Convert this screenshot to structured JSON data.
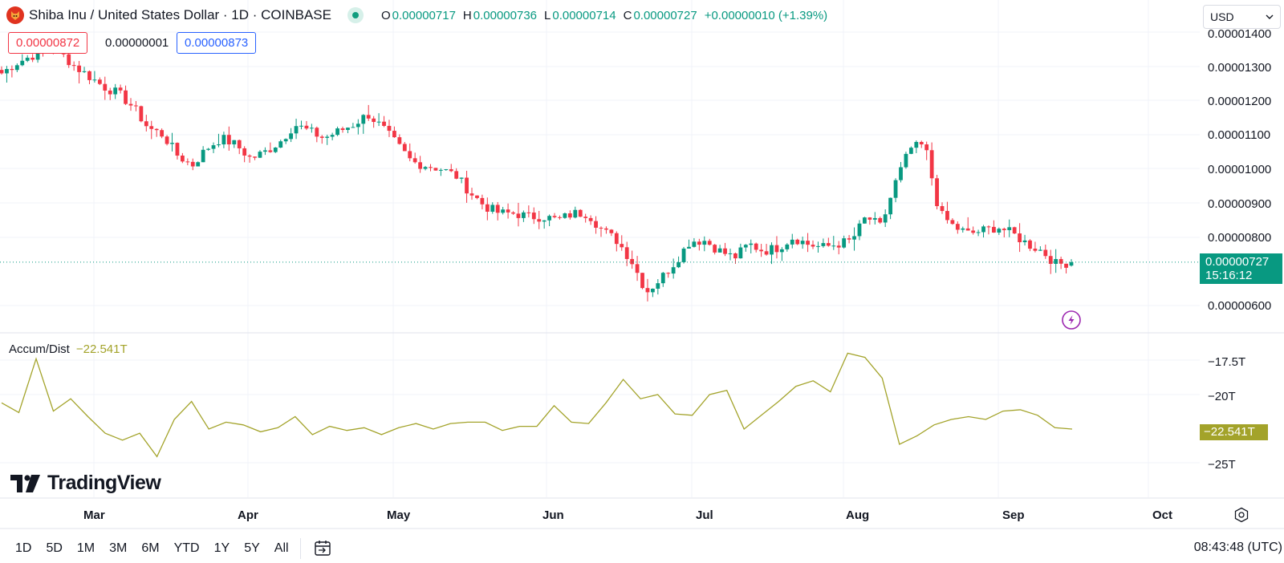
{
  "header": {
    "title": "Shiba Inu / United States Dollar · 1D · COINBASE",
    "ohlc": [
      {
        "key": "O",
        "value": "0.00000717"
      },
      {
        "key": "H",
        "value": "0.00000736"
      },
      {
        "key": "L",
        "value": "0.00000714"
      },
      {
        "key": "C",
        "value": "0.00000727"
      }
    ],
    "change": "+0.00000010 (+1.39%)"
  },
  "trade": {
    "sell": "0.00000872",
    "spread": "0.00000001",
    "buy": "0.00000873"
  },
  "currency": {
    "selected": "USD",
    "icon": "chevron-down-icon"
  },
  "price_axis": {
    "labels": [
      "0.00001400",
      "0.00001300",
      "0.00001200",
      "0.00001100",
      "0.00001000",
      "0.00000900",
      "0.00000800",
      "0.00000600"
    ],
    "last_price": "0.00000727",
    "countdown": "15:16:12"
  },
  "indicator": {
    "name": "Accum/Dist",
    "value": "−22.541T",
    "axis_labels": [
      "−17.5T",
      "−20T",
      "−25T"
    ],
    "tag": "−22.541T"
  },
  "time_axis": [
    "Mar",
    "Apr",
    "May",
    "Jun",
    "Jul",
    "Aug",
    "Sep",
    "Oct"
  ],
  "brand": "TradingView",
  "bottom": {
    "ranges": [
      "1D",
      "5D",
      "1M",
      "3M",
      "6M",
      "YTD",
      "1Y",
      "5Y",
      "All"
    ],
    "clock": "08:43:48 (UTC)"
  },
  "colors": {
    "up": "#089981",
    "down": "#f23645",
    "ad_line": "#a3a32a",
    "accent": "#2962ff"
  },
  "chart_data": [
    {
      "type": "candlestick",
      "title": "Shiba Inu / United States Dollar · 1D · COINBASE",
      "x": "daily, ~Feb 16 – Sep 13",
      "ylim": [
        5.8e-06,
        1.41e-05
      ],
      "xticks": [
        "Mar",
        "Apr",
        "May",
        "Jun",
        "Jul",
        "Aug",
        "Sep",
        "Oct"
      ],
      "close_path_estimated": [
        [
          1.28e-05,
          1.31e-05,
          1.33e-05,
          1.35e-05,
          1.34e-05,
          1.3e-05,
          1.27e-05,
          1.24e-05,
          1.22e-05,
          1.18e-05,
          1.12e-05
        ],
        [
          1.1e-05,
          1.04e-05,
          1.01e-05,
          1.06e-05,
          1.09e-05,
          1.07e-05,
          1.03e-05,
          1.05e-05,
          1.08e-05,
          1.13e-05,
          1.11e-05
        ],
        [
          1.09e-05,
          1.11e-05,
          1.13e-05,
          1.16e-05,
          1.12e-05,
          1.07e-05,
          1.02e-05,
          1.01e-05,
          1e-05,
          9.8e-06,
          9.3e-06
        ],
        [
          8.9e-06,
          8.7e-06,
          8.7e-06,
          8.6e-06,
          8.6e-06,
          8.5e-06,
          8.7e-06,
          8.7e-06,
          8.2e-06,
          7.9e-06,
          7.3e-06
        ],
        [
          6.4e-06,
          6.8e-06,
          7.3e-06,
          7.9e-06,
          7.9e-06,
          7.6e-06,
          7.4e-06,
          7.8e-06,
          7.6e-06,
          7.7e-06,
          8e-06
        ],
        [
          7.8e-06,
          7.7e-06,
          7.8e-06,
          7.9e-06,
          8.6e-06,
          8.3e-06,
          9.6e-06,
          1.06e-05,
          1.07e-05,
          8.7e-06,
          8.3e-06
        ],
        [
          8.1e-06,
          8.2e-06,
          8.3e-06,
          8.1e-06,
          7.8e-06,
          7.6e-06,
          7.2e-06,
          7.27e-06
        ]
      ],
      "last": {
        "open": 7.17e-06,
        "high": 7.36e-06,
        "low": 7.14e-06,
        "close": 7.27e-06
      }
    },
    {
      "type": "line",
      "series": [
        {
          "name": "Accum/Dist"
        }
      ],
      "ylim": [
        -26,
        -16.5
      ],
      "yticks": [
        "−17.5T",
        "−20T",
        "−25T"
      ],
      "values": [
        -20.6,
        -21.3,
        -17.4,
        -21.2,
        -20.3,
        -21.6,
        -22.8,
        -23.3,
        -22.8,
        -24.5,
        -21.8,
        -20.5,
        -22.5,
        -22.0,
        -22.2,
        -22.7,
        -22.4,
        -21.6,
        -22.9,
        -22.3,
        -22.6,
        -22.4,
        -22.9,
        -22.4,
        -22.1,
        -22.5,
        -22.1,
        -22.0,
        -22.0,
        -22.6,
        -22.3,
        -22.3,
        -20.8,
        -22.0,
        -22.1,
        -20.6,
        -18.9,
        -20.3,
        -20.0,
        -21.4,
        -21.5,
        -20.0,
        -19.7,
        -22.5,
        -21.5,
        -20.5,
        -19.4,
        -19.0,
        -19.8,
        -17.0,
        -17.3,
        -18.8,
        -23.6,
        -23.0,
        -22.2,
        -21.8,
        -21.6,
        -21.8,
        -21.2,
        -21.1,
        -21.5,
        -22.4,
        -22.5
      ],
      "last_value": "−22.541T"
    }
  ]
}
